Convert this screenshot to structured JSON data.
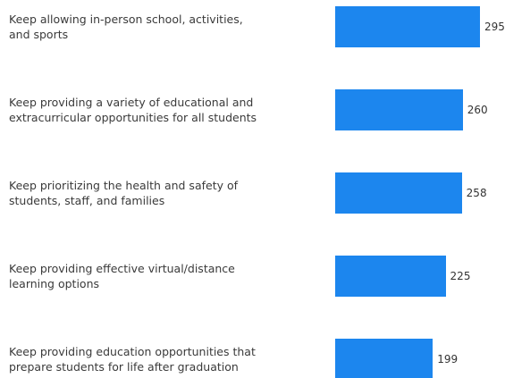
{
  "chart_data": {
    "type": "bar",
    "orientation": "horizontal",
    "color": "#1c86ee",
    "categories": [
      "Keep allowing in-person school, activities,\nand sports",
      "Keep providing a variety of educational and\nextracurricular opportunities for all students",
      "Keep prioritizing the health and safety of\nstudents, staff, and families",
      "Keep providing effective virtual/distance\nlearning options",
      "Keep providing education opportunities that\nprepare students for life after graduation"
    ],
    "values": [
      295,
      260,
      258,
      225,
      199
    ]
  }
}
